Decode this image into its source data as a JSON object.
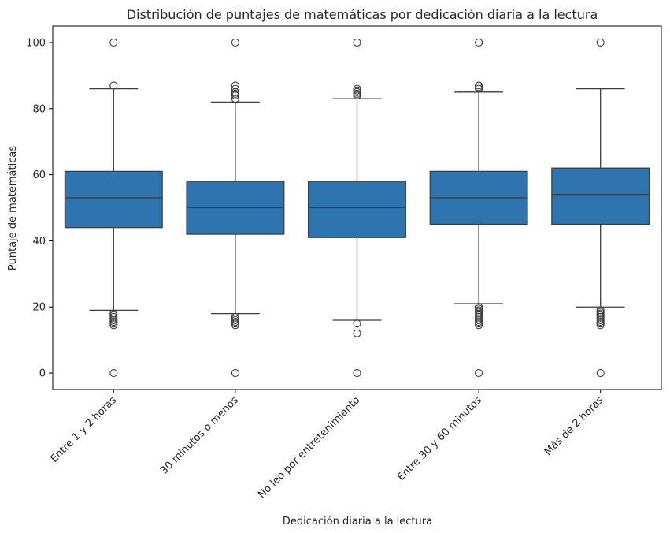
{
  "chart_data": {
    "type": "box",
    "title": "Distribución de puntajes de matemáticas por dedicación diaria a la lectura",
    "xlabel": "Dedicación diaria a la lectura",
    "ylabel": "Puntaje de matemáticas",
    "ylim": [
      -5,
      105
    ],
    "yticks": [
      0,
      20,
      40,
      60,
      80,
      100
    ],
    "grid": false,
    "box_color": "#2e75b0",
    "edge_color": "#3d3d3d",
    "categories": [
      "Entre 1 y 2 horas",
      "30 minutos o menos",
      "No leo por entretenimiento",
      "Entre 30 y 60 minutos",
      "Más de 2 horas"
    ],
    "boxes": [
      {
        "whislo": 19,
        "q1": 44,
        "med": 53,
        "q3": 61,
        "whishi": 86,
        "fliers": [
          0,
          14.5,
          15,
          15.5,
          16,
          16.5,
          17,
          17.5,
          18,
          87,
          100
        ]
      },
      {
        "whislo": 18,
        "q1": 42,
        "med": 50,
        "q3": 58,
        "whishi": 82,
        "fliers": [
          0,
          14.5,
          15,
          15.5,
          16,
          16.5,
          17,
          83,
          84,
          84.5,
          85,
          86,
          87,
          100
        ]
      },
      {
        "whislo": 16,
        "q1": 41,
        "med": 50,
        "q3": 58,
        "whishi": 83,
        "fliers": [
          0,
          12,
          15,
          84,
          84.5,
          85,
          85.5,
          86,
          100
        ]
      },
      {
        "whislo": 21,
        "q1": 45,
        "med": 53,
        "q3": 61,
        "whishi": 85,
        "fliers": [
          0,
          14.5,
          15,
          15.5,
          16,
          16.5,
          17,
          17.5,
          18,
          18.5,
          19,
          19.5,
          20,
          86,
          86.5,
          87,
          100
        ]
      },
      {
        "whislo": 20,
        "q1": 45,
        "med": 54,
        "q3": 62,
        "whishi": 86,
        "fliers": [
          0,
          14.5,
          15,
          15.5,
          16,
          16.5,
          17,
          17.5,
          18,
          18.5,
          19,
          100
        ]
      }
    ]
  }
}
